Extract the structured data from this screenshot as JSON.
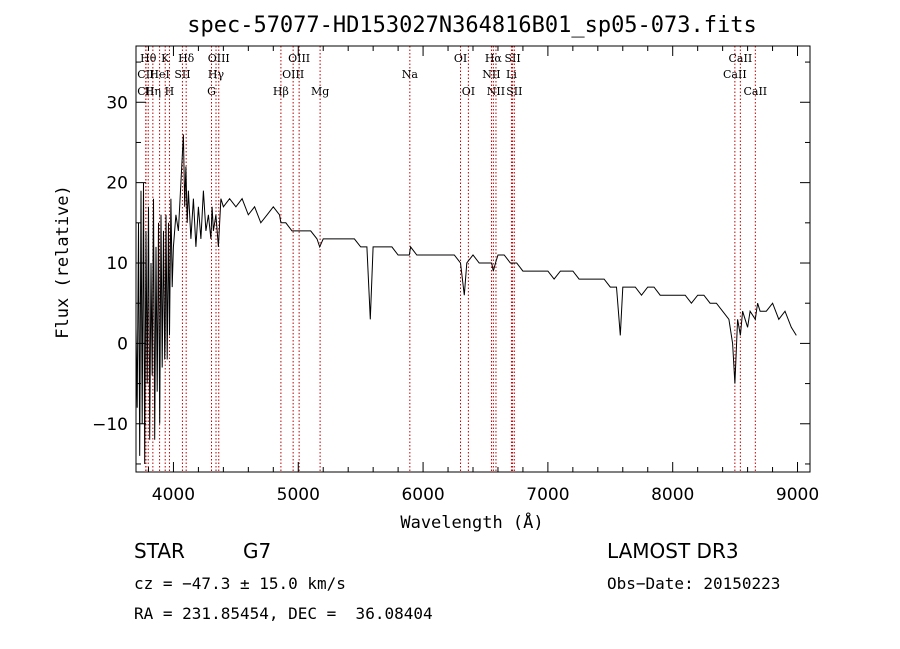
{
  "chart_data": {
    "type": "line",
    "title": "spec-57077-HD153027N364816B01_sp05-073.fits",
    "xlabel": "Wavelength (Å)",
    "ylabel": "Flux (relative)",
    "xlim": [
      3700,
      9100
    ],
    "ylim": [
      -16,
      37
    ],
    "xticks": [
      4000,
      5000,
      6000,
      7000,
      8000,
      9000
    ],
    "yticks": [
      -10,
      0,
      10,
      20,
      30
    ],
    "grid": false,
    "series": [
      {
        "name": "spectrum",
        "x": [
          3700,
          3710,
          3720,
          3730,
          3740,
          3750,
          3760,
          3770,
          3780,
          3790,
          3800,
          3810,
          3820,
          3830,
          3840,
          3850,
          3860,
          3870,
          3880,
          3890,
          3900,
          3910,
          3920,
          3930,
          3933,
          3940,
          3950,
          3960,
          3968,
          3980,
          3990,
          4000,
          4020,
          4040,
          4060,
          4080,
          4090,
          4100,
          4110,
          4120,
          4140,
          4160,
          4180,
          4200,
          4220,
          4240,
          4260,
          4280,
          4300,
          4310,
          4320,
          4340,
          4360,
          4380,
          4400,
          4450,
          4500,
          4550,
          4600,
          4650,
          4700,
          4750,
          4800,
          4850,
          4861,
          4900,
          4950,
          5000,
          5050,
          5100,
          5150,
          5172,
          5200,
          5250,
          5300,
          5350,
          5400,
          5450,
          5500,
          5550,
          5577,
          5600,
          5650,
          5700,
          5750,
          5800,
          5850,
          5890,
          5900,
          5950,
          6000,
          6050,
          6100,
          6150,
          6200,
          6250,
          6300,
          6330,
          6350,
          6400,
          6450,
          6500,
          6550,
          6563,
          6580,
          6600,
          6650,
          6700,
          6750,
          6800,
          6850,
          6900,
          6950,
          7000,
          7050,
          7100,
          7150,
          7200,
          7250,
          7300,
          7350,
          7400,
          7450,
          7500,
          7550,
          7580,
          7600,
          7650,
          7700,
          7750,
          7800,
          7850,
          7900,
          7950,
          8000,
          8050,
          8100,
          8150,
          8200,
          8250,
          8300,
          8350,
          8400,
          8450,
          8480,
          8498,
          8520,
          8542,
          8560,
          8600,
          8620,
          8662,
          8680,
          8700,
          8750,
          8800,
          8850,
          8900,
          8950,
          8990
        ],
        "y": [
          2,
          -8,
          15,
          -14,
          19,
          -10,
          20,
          -15,
          14,
          -5,
          17,
          -12,
          10,
          -4,
          18,
          -12,
          12,
          -6,
          15,
          -10,
          16,
          -3,
          14,
          -2,
          0,
          16,
          -2,
          15,
          1,
          18,
          7,
          12,
          16,
          14,
          20,
          26,
          17,
          22,
          15,
          19,
          13,
          18,
          12,
          17,
          13,
          19,
          14,
          16,
          13,
          17,
          14,
          16,
          12,
          18,
          17,
          18,
          17,
          18,
          16,
          17,
          15,
          16,
          17,
          16,
          15,
          15,
          14,
          14,
          14,
          14,
          13,
          12,
          13,
          13,
          13,
          13,
          13,
          13,
          12,
          12,
          3,
          12,
          12,
          12,
          12,
          11,
          11,
          11,
          12,
          11,
          11,
          11,
          11,
          11,
          11,
          11,
          10,
          6,
          10,
          11,
          10,
          10,
          10,
          9,
          10,
          11,
          11,
          10,
          10,
          9,
          9,
          9,
          9,
          9,
          8,
          9,
          9,
          9,
          8,
          8,
          8,
          8,
          8,
          7,
          7,
          1,
          7,
          7,
          7,
          6,
          7,
          7,
          6,
          6,
          6,
          6,
          6,
          5,
          6,
          6,
          5,
          5,
          4,
          3,
          0,
          -5,
          3,
          1,
          4,
          2,
          4,
          3,
          5,
          4,
          4,
          5,
          3,
          4,
          2,
          1
        ]
      }
    ],
    "annotations": [
      {
        "label": "Hθ",
        "x": 3798,
        "row": 1
      },
      {
        "label": "CII",
        "x": 3779,
        "row": 2
      },
      {
        "label": "CII",
        "x": 3779,
        "row": 3
      },
      {
        "label": "K",
        "x": 3934,
        "row": 1
      },
      {
        "label": "HeI",
        "x": 3889,
        "row": 2
      },
      {
        "label": "Hη",
        "x": 3835,
        "row": 3
      },
      {
        "label": "H",
        "x": 3968,
        "row": 3
      },
      {
        "label": "Hδ",
        "x": 4102,
        "row": 1
      },
      {
        "label": "SII",
        "x": 4072,
        "row": 2
      },
      {
        "label": "OIII",
        "x": 4363,
        "row": 1
      },
      {
        "label": "Hγ",
        "x": 4341,
        "row": 2
      },
      {
        "label": "G",
        "x": 4305,
        "row": 3
      },
      {
        "label": "OIII",
        "x": 5007,
        "row": 1
      },
      {
        "label": "OIII",
        "x": 4959,
        "row": 2
      },
      {
        "label": "Hβ",
        "x": 4861,
        "row": 3
      },
      {
        "label": "Mg",
        "x": 5175,
        "row": 3
      },
      {
        "label": "Na",
        "x": 5894,
        "row": 2
      },
      {
        "label": "OI",
        "x": 6300,
        "row": 1
      },
      {
        "label": "OI",
        "x": 6363,
        "row": 3
      },
      {
        "label": "Hα",
        "x": 6563,
        "row": 1
      },
      {
        "label": "NII",
        "x": 6548,
        "row": 2
      },
      {
        "label": "NII",
        "x": 6584,
        "row": 3
      },
      {
        "label": "SII",
        "x": 6717,
        "row": 1
      },
      {
        "label": "Li",
        "x": 6708,
        "row": 2
      },
      {
        "label": "SII",
        "x": 6731,
        "row": 3
      },
      {
        "label": "CaII",
        "x": 8542,
        "row": 1
      },
      {
        "label": "CaII",
        "x": 8498,
        "row": 2
      },
      {
        "label": "CaII",
        "x": 8662,
        "row": 3
      }
    ]
  },
  "info": {
    "object_class": "STAR",
    "subclass": "G7",
    "survey": "LAMOST DR3",
    "redshift": "cz = −47.3 ± 15.0 km/s",
    "obs_date": "Obs−Date: 20150223",
    "coords": "RA = 231.85454, DEC =  36.08404"
  },
  "colors": {
    "line_marker": "#c00000",
    "spectrum": "#000000",
    "axes": "#000000"
  }
}
